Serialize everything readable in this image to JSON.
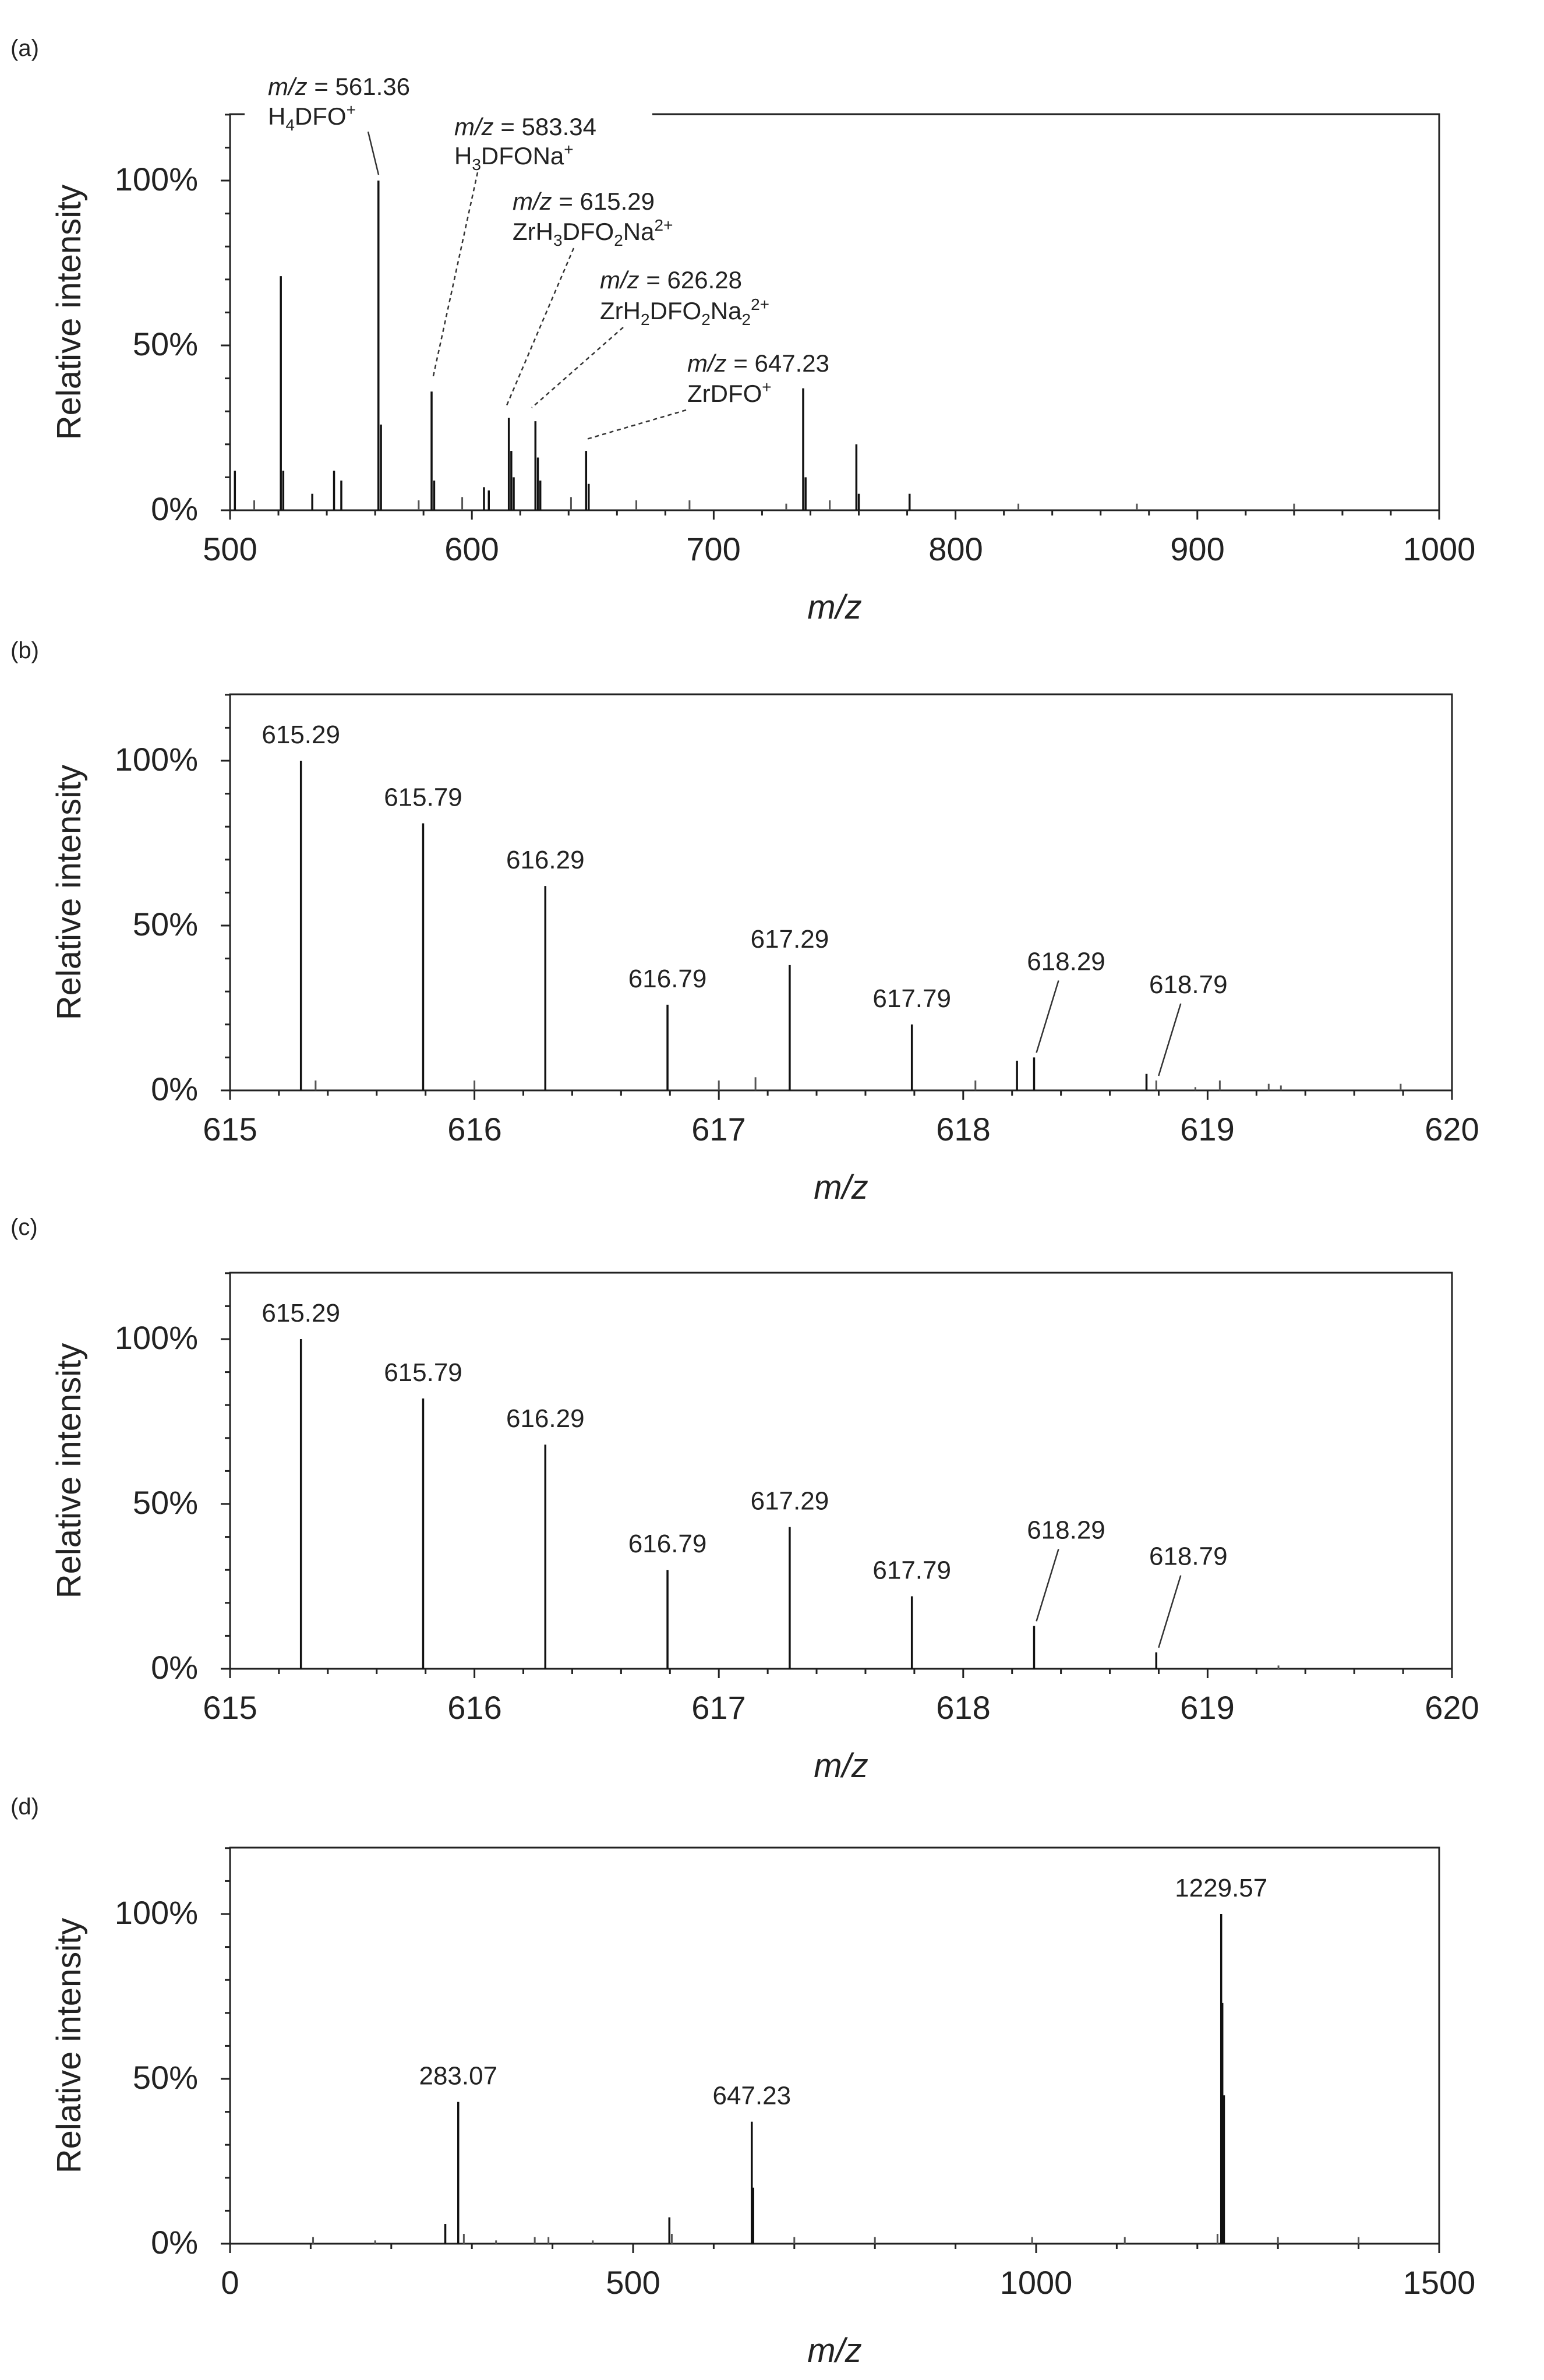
{
  "chart_data": [
    {
      "type": "bar",
      "panel": "(a)",
      "xlabel": "m/z",
      "ylabel": "Relative intensity",
      "xlim": [
        500,
        1000
      ],
      "ylim": [
        0,
        120
      ],
      "xticks": [
        "500",
        "600",
        "700",
        "800",
        "900",
        "1000"
      ],
      "yticks": [
        "0%",
        "50%",
        "100%"
      ],
      "peaks": [
        {
          "x": 521,
          "y": 71
        },
        {
          "x": 522,
          "y": 12
        },
        {
          "x": 561.36,
          "y": 100
        },
        {
          "x": 562.4,
          "y": 26
        },
        {
          "x": 583.34,
          "y": 36
        },
        {
          "x": 584.4,
          "y": 9
        },
        {
          "x": 615.29,
          "y": 28
        },
        {
          "x": 616.3,
          "y": 18
        },
        {
          "x": 617.3,
          "y": 10
        },
        {
          "x": 626.28,
          "y": 27
        },
        {
          "x": 627.3,
          "y": 16
        },
        {
          "x": 628.3,
          "y": 9
        },
        {
          "x": 647.23,
          "y": 18
        },
        {
          "x": 648.3,
          "y": 8
        },
        {
          "x": 737,
          "y": 37
        },
        {
          "x": 738,
          "y": 10
        },
        {
          "x": 759,
          "y": 20
        },
        {
          "x": 760,
          "y": 5
        },
        {
          "x": 781,
          "y": 5
        },
        {
          "x": 543,
          "y": 12
        },
        {
          "x": 546,
          "y": 9
        },
        {
          "x": 534,
          "y": 5
        },
        {
          "x": 605,
          "y": 7
        },
        {
          "x": 607,
          "y": 6
        },
        {
          "x": 596,
          "y": 4
        },
        {
          "x": 641,
          "y": 4
        },
        {
          "x": 668,
          "y": 3
        },
        {
          "x": 690,
          "y": 3
        },
        {
          "x": 748,
          "y": 3
        },
        {
          "x": 502,
          "y": 12
        },
        {
          "x": 510,
          "y": 3
        },
        {
          "x": 578,
          "y": 3
        },
        {
          "x": 826,
          "y": 2
        },
        {
          "x": 875,
          "y": 2
        },
        {
          "x": 940,
          "y": 2
        },
        {
          "x": 730,
          "y": 2
        }
      ],
      "annotations": [
        {
          "mz_prefix": "m/z",
          "mz_value": "= 561.36",
          "formula": "H4DFO+",
          "x": 561.36,
          "y": 100
        },
        {
          "mz_prefix": "m/z",
          "mz_value": "= 583.34",
          "formula": "H3DFONa+",
          "x": 583.34,
          "y": 36
        },
        {
          "mz_prefix": "m/z",
          "mz_value": "= 615.29",
          "formula": "ZrH3DFO2Na2+",
          "x": 615.29,
          "y": 28
        },
        {
          "mz_prefix": "m/z",
          "mz_value": "= 626.28",
          "formula": "ZrH2DFO2Na22+",
          "x": 626.28,
          "y": 27
        },
        {
          "mz_prefix": "m/z",
          "mz_value": "= 647.23",
          "formula": "ZrDFO+",
          "x": 647.23,
          "y": 18
        }
      ]
    },
    {
      "type": "bar",
      "panel": "(b)",
      "xlabel": "m/z",
      "ylabel": "Relative intensity",
      "xlim": [
        615,
        620
      ],
      "ylim": [
        0,
        120
      ],
      "xticks": [
        "615",
        "616",
        "617",
        "618",
        "619",
        "620"
      ],
      "yticks": [
        "0%",
        "50%",
        "100%"
      ],
      "peaks": [
        {
          "x": 615.29,
          "y": 100
        },
        {
          "x": 615.35,
          "y": 3
        },
        {
          "x": 615.79,
          "y": 81
        },
        {
          "x": 616.29,
          "y": 62
        },
        {
          "x": 616.79,
          "y": 26
        },
        {
          "x": 617.15,
          "y": 4
        },
        {
          "x": 617.29,
          "y": 38
        },
        {
          "x": 617.79,
          "y": 20
        },
        {
          "x": 618.22,
          "y": 9
        },
        {
          "x": 618.29,
          "y": 10
        },
        {
          "x": 618.75,
          "y": 5
        },
        {
          "x": 618.79,
          "y": 3
        },
        {
          "x": 618.95,
          "y": 1
        },
        {
          "x": 619.25,
          "y": 2
        },
        {
          "x": 619.3,
          "y": 1.5
        },
        {
          "x": 619.79,
          "y": 2
        },
        {
          "x": 616.0,
          "y": 3
        },
        {
          "x": 617.0,
          "y": 3
        },
        {
          "x": 618.05,
          "y": 3
        },
        {
          "x": 619.05,
          "y": 3
        }
      ],
      "labels": [
        {
          "text": "615.29",
          "x": 615.29,
          "y": 100
        },
        {
          "text": "615.79",
          "x": 615.79,
          "y": 81
        },
        {
          "text": "616.29",
          "x": 616.29,
          "y": 62
        },
        {
          "text": "616.79",
          "x": 616.79,
          "y": 26
        },
        {
          "text": "617.29",
          "x": 617.29,
          "y": 38
        },
        {
          "text": "617.79",
          "x": 617.79,
          "y": 20
        },
        {
          "text": "618.29",
          "x": 618.29,
          "y": 10
        },
        {
          "text": "618.79",
          "x": 618.79,
          "y": 3
        }
      ]
    },
    {
      "type": "bar",
      "panel": "(c)",
      "xlabel": "m/z",
      "ylabel": "Relative intensity",
      "xlim": [
        615,
        620
      ],
      "ylim": [
        0,
        120
      ],
      "xticks": [
        "615",
        "616",
        "617",
        "618",
        "619",
        "620"
      ],
      "yticks": [
        "0%",
        "50%",
        "100%"
      ],
      "peaks": [
        {
          "x": 615.29,
          "y": 100
        },
        {
          "x": 615.79,
          "y": 82
        },
        {
          "x": 616.29,
          "y": 68
        },
        {
          "x": 616.79,
          "y": 30
        },
        {
          "x": 617.29,
          "y": 43
        },
        {
          "x": 617.79,
          "y": 22
        },
        {
          "x": 618.29,
          "y": 13
        },
        {
          "x": 618.79,
          "y": 5
        },
        {
          "x": 619.29,
          "y": 1
        }
      ],
      "labels": [
        {
          "text": "615.29",
          "x": 615.29,
          "y": 100
        },
        {
          "text": "615.79",
          "x": 615.79,
          "y": 82
        },
        {
          "text": "616.29",
          "x": 616.29,
          "y": 68
        },
        {
          "text": "616.79",
          "x": 616.79,
          "y": 30
        },
        {
          "text": "617.29",
          "x": 617.29,
          "y": 43
        },
        {
          "text": "617.79",
          "x": 617.79,
          "y": 22
        },
        {
          "text": "618.29",
          "x": 618.29,
          "y": 13
        },
        {
          "text": "618.79",
          "x": 618.79,
          "y": 5
        }
      ]
    },
    {
      "type": "bar",
      "panel": "(d)",
      "xlabel": "m/z",
      "ylabel": "Relative intensity",
      "xlim": [
        0,
        1500
      ],
      "ylim": [
        0,
        120
      ],
      "xticks": [
        "0",
        "500",
        "1000",
        "1500"
      ],
      "yticks": [
        "0%",
        "50%",
        "100%"
      ],
      "peaks": [
        {
          "x": 283.07,
          "y": 43
        },
        {
          "x": 267,
          "y": 6
        },
        {
          "x": 290,
          "y": 3
        },
        {
          "x": 545,
          "y": 8
        },
        {
          "x": 548,
          "y": 3
        },
        {
          "x": 647.23,
          "y": 37
        },
        {
          "x": 649,
          "y": 17
        },
        {
          "x": 1229.57,
          "y": 100
        },
        {
          "x": 1231,
          "y": 73
        },
        {
          "x": 1233,
          "y": 45
        },
        {
          "x": 1225,
          "y": 3
        },
        {
          "x": 800,
          "y": 2
        },
        {
          "x": 103,
          "y": 2
        },
        {
          "x": 378,
          "y": 2
        },
        {
          "x": 395,
          "y": 2
        },
        {
          "x": 1400,
          "y": 2
        },
        {
          "x": 1300,
          "y": 2
        },
        {
          "x": 1110,
          "y": 2
        },
        {
          "x": 450,
          "y": 1
        },
        {
          "x": 700,
          "y": 2
        },
        {
          "x": 995,
          "y": 2
        },
        {
          "x": 180,
          "y": 1
        },
        {
          "x": 330,
          "y": 1
        }
      ],
      "labels": [
        {
          "text": "283.07",
          "x": 283.07,
          "y": 43
        },
        {
          "text": "647.23",
          "x": 647.23,
          "y": 37
        },
        {
          "text": "1229.57",
          "x": 1229.57,
          "y": 100
        }
      ]
    }
  ]
}
